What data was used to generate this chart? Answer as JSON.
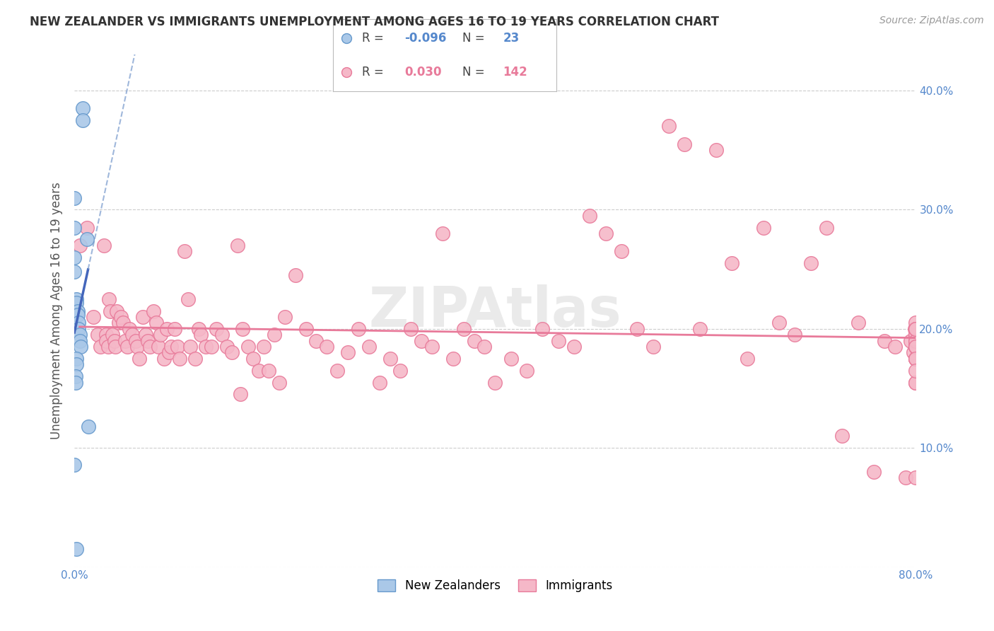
{
  "title": "NEW ZEALANDER VS IMMIGRANTS UNEMPLOYMENT AMONG AGES 16 TO 19 YEARS CORRELATION CHART",
  "source": "Source: ZipAtlas.com",
  "ylabel": "Unemployment Among Ages 16 to 19 years",
  "xlim": [
    0.0,
    0.8
  ],
  "ylim": [
    0.0,
    0.43
  ],
  "xticks": [
    0.0,
    0.1,
    0.2,
    0.3,
    0.4,
    0.5,
    0.6,
    0.7,
    0.8
  ],
  "xticklabels": [
    "0.0%",
    "",
    "",
    "",
    "",
    "",
    "",
    "",
    "80.0%"
  ],
  "yticks": [
    0.0,
    0.1,
    0.2,
    0.3,
    0.4
  ],
  "yticklabels": [
    "",
    "10.0%",
    "20.0%",
    "30.0%",
    "40.0%"
  ],
  "grid_color": "#cccccc",
  "background_color": "#ffffff",
  "nz_color": "#aac8e8",
  "nz_edge_color": "#6699cc",
  "imm_color": "#f5b8c8",
  "imm_edge_color": "#e87a9a",
  "watermark": "ZIPAtlas",
  "nz_x": [
    0.008,
    0.008,
    0.0,
    0.0,
    0.012,
    0.0,
    0.0,
    0.002,
    0.002,
    0.003,
    0.003,
    0.004,
    0.004,
    0.005,
    0.005,
    0.006,
    0.002,
    0.002,
    0.001,
    0.001,
    0.013,
    0.0,
    0.002
  ],
  "nz_y": [
    0.385,
    0.375,
    0.31,
    0.285,
    0.275,
    0.26,
    0.248,
    0.225,
    0.222,
    0.215,
    0.212,
    0.205,
    0.2,
    0.195,
    0.19,
    0.185,
    0.175,
    0.17,
    0.16,
    0.155,
    0.118,
    0.086,
    0.015
  ],
  "imm_x": [
    0.005,
    0.012,
    0.018,
    0.022,
    0.025,
    0.028,
    0.03,
    0.03,
    0.032,
    0.033,
    0.034,
    0.036,
    0.038,
    0.039,
    0.04,
    0.042,
    0.044,
    0.046,
    0.048,
    0.05,
    0.052,
    0.055,
    0.058,
    0.06,
    0.062,
    0.065,
    0.068,
    0.07,
    0.072,
    0.075,
    0.078,
    0.08,
    0.082,
    0.085,
    0.088,
    0.09,
    0.092,
    0.095,
    0.098,
    0.1,
    0.105,
    0.108,
    0.11,
    0.115,
    0.118,
    0.12,
    0.125,
    0.13,
    0.135,
    0.14,
    0.145,
    0.15,
    0.155,
    0.158,
    0.16,
    0.165,
    0.17,
    0.175,
    0.18,
    0.185,
    0.19,
    0.195,
    0.2,
    0.21,
    0.22,
    0.23,
    0.24,
    0.25,
    0.26,
    0.27,
    0.28,
    0.29,
    0.3,
    0.31,
    0.32,
    0.33,
    0.34,
    0.35,
    0.36,
    0.37,
    0.38,
    0.39,
    0.4,
    0.415,
    0.43,
    0.445,
    0.46,
    0.475,
    0.49,
    0.505,
    0.52,
    0.535,
    0.55,
    0.565,
    0.58,
    0.595,
    0.61,
    0.625,
    0.64,
    0.655,
    0.67,
    0.685,
    0.7,
    0.715,
    0.73,
    0.745,
    0.76,
    0.77,
    0.78,
    0.79,
    0.795,
    0.798,
    0.799,
    0.8,
    0.8,
    0.8,
    0.8,
    0.8,
    0.8,
    0.8,
    0.8,
    0.8,
    0.8,
    0.8,
    0.8,
    0.8,
    0.8,
    0.8,
    0.8,
    0.8,
    0.8,
    0.8,
    0.8,
    0.8,
    0.8,
    0.8,
    0.8,
    0.8
  ],
  "imm_y": [
    0.27,
    0.285,
    0.21,
    0.195,
    0.185,
    0.27,
    0.195,
    0.19,
    0.185,
    0.225,
    0.215,
    0.195,
    0.19,
    0.185,
    0.215,
    0.205,
    0.21,
    0.205,
    0.19,
    0.185,
    0.2,
    0.195,
    0.19,
    0.185,
    0.175,
    0.21,
    0.195,
    0.19,
    0.185,
    0.215,
    0.205,
    0.185,
    0.195,
    0.175,
    0.2,
    0.18,
    0.185,
    0.2,
    0.185,
    0.175,
    0.265,
    0.225,
    0.185,
    0.175,
    0.2,
    0.195,
    0.185,
    0.185,
    0.2,
    0.195,
    0.185,
    0.18,
    0.27,
    0.145,
    0.2,
    0.185,
    0.175,
    0.165,
    0.185,
    0.165,
    0.195,
    0.155,
    0.21,
    0.245,
    0.2,
    0.19,
    0.185,
    0.165,
    0.18,
    0.2,
    0.185,
    0.155,
    0.175,
    0.165,
    0.2,
    0.19,
    0.185,
    0.28,
    0.175,
    0.2,
    0.19,
    0.185,
    0.155,
    0.175,
    0.165,
    0.2,
    0.19,
    0.185,
    0.295,
    0.28,
    0.265,
    0.2,
    0.185,
    0.37,
    0.355,
    0.2,
    0.35,
    0.255,
    0.175,
    0.285,
    0.205,
    0.195,
    0.255,
    0.285,
    0.11,
    0.205,
    0.08,
    0.19,
    0.185,
    0.075,
    0.19,
    0.18,
    0.2,
    0.19,
    0.185,
    0.175,
    0.195,
    0.155,
    0.195,
    0.2,
    0.185,
    0.075,
    0.2,
    0.185,
    0.175,
    0.185,
    0.175,
    0.205,
    0.195,
    0.185,
    0.175,
    0.2,
    0.19,
    0.185,
    0.155,
    0.175,
    0.165,
    0.2
  ]
}
